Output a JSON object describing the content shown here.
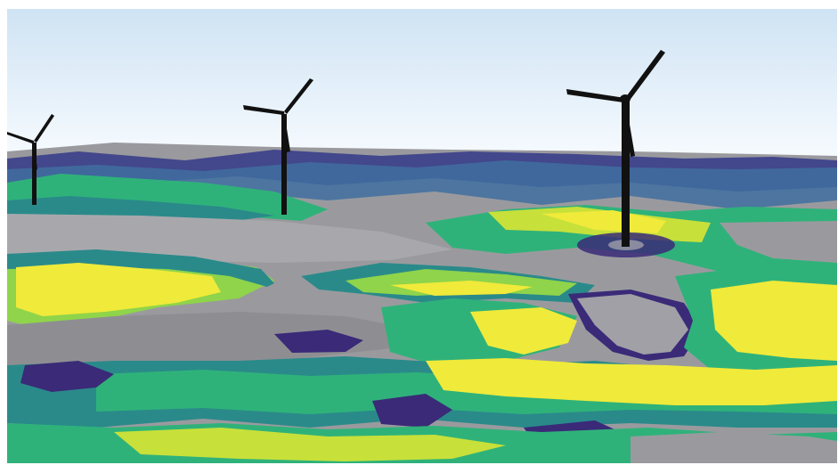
{
  "scene": {
    "kind": "3d-terrain-visualization",
    "subject": "wind-turbines-on-colored-terrain",
    "turbine_count": 3,
    "colors": {
      "sky_top": "#cfe3f3",
      "sky_bottom": "#f7fbff",
      "gray": "#9a9a9e",
      "gray_light": "#b8b8bc",
      "dark_purple": "#3a2a78",
      "blue": "#3a5a9a",
      "teal": "#2a8a8a",
      "green": "#2fb27a",
      "lime": "#8fd44a",
      "yellow": "#f0ea3a",
      "turbine": "#111111"
    }
  }
}
